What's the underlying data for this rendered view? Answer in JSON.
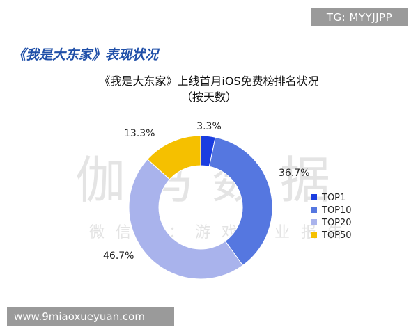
{
  "header": {
    "tg_label": "TG: MYYJJPP",
    "section_heading": "《我是大东家》表现状况"
  },
  "watermark": {
    "brand": "伽马数据",
    "tagline": "微信号：游戏产业报告"
  },
  "footer": {
    "site": "www.9miaoxueyuan.com"
  },
  "chart_data": {
    "type": "pie",
    "donut": true,
    "title": "《我是大东家》上线首月iOS免费榜排名状况",
    "subtitle": "（按天数）",
    "categories": [
      "TOP1",
      "TOP10",
      "TOP20",
      "TOP50"
    ],
    "values": [
      3.3,
      36.7,
      46.7,
      13.3
    ],
    "value_labels": [
      "3.3%",
      "36.7%",
      "46.7%",
      "13.3%"
    ],
    "colors": [
      "#1a3de0",
      "#5577e0",
      "#a9b3ec",
      "#f5c000"
    ],
    "legend": "right"
  }
}
